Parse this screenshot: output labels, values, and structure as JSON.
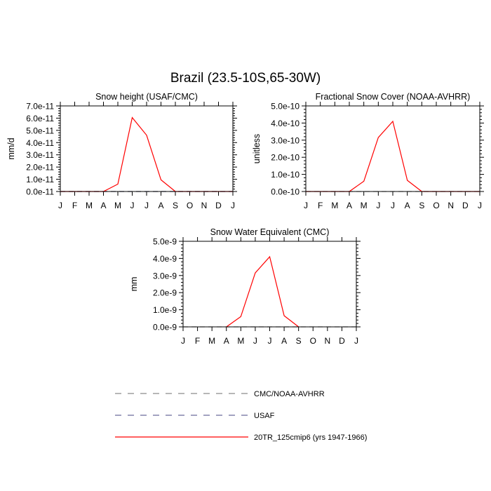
{
  "figure_title": "Brazil (23.5-10S,65-30W)",
  "colors": {
    "model": "#ff0000",
    "obs_cmc": "#8c8c8c",
    "obs_usaf": "#6b6b9a"
  },
  "legend": {
    "items": [
      {
        "label": "CMC/NOAA-AVHRR",
        "style": "dashed",
        "color": "#8c8c8c"
      },
      {
        "label": "USAF",
        "style": "dashed",
        "color": "#6b6b9a"
      },
      {
        "label": "20TR_125cmip6 (yrs 1947-1966)",
        "style": "solid",
        "color": "#ff0000"
      }
    ]
  },
  "chart_data": [
    {
      "type": "line",
      "title": "Snow height (USAF/CMC)",
      "ylabel": "mm/d",
      "xlabel": "",
      "x": [
        "J",
        "F",
        "M",
        "A",
        "M",
        "J",
        "J",
        "A",
        "S",
        "O",
        "N",
        "D",
        "J"
      ],
      "ylim": [
        0,
        7e-11
      ],
      "yticks": [
        0,
        1e-11,
        2e-11,
        3e-11,
        4e-11,
        5e-11,
        6e-11,
        7e-11
      ],
      "ytick_labels": [
        "0.0e-11",
        "1.0e-11",
        "2.0e-11",
        "3.0e-11",
        "4.0e-11",
        "5.0e-11",
        "6.0e-11",
        "7.0e-11"
      ],
      "series": [
        {
          "name": "20TR_125cmip6 (yrs 1947-1966)",
          "style": "solid",
          "values": [
            0,
            0,
            0,
            0,
            6e-12,
            6.05e-11,
            4.6e-11,
            9.5e-12,
            0,
            0,
            0,
            0,
            0
          ]
        },
        {
          "name": "USAF",
          "style": "dashed",
          "values": [
            0,
            0,
            0,
            0,
            0,
            0,
            0,
            0,
            0,
            0,
            0,
            0,
            0
          ]
        },
        {
          "name": "CMC/NOAA-AVHRR",
          "style": "dashed",
          "values": [
            0,
            0,
            0,
            0,
            0,
            0,
            0,
            0,
            0,
            0,
            0,
            0,
            0
          ]
        }
      ]
    },
    {
      "type": "line",
      "title": "Fractional Snow Cover (NOAA-AVHRR)",
      "ylabel": "unitless",
      "xlabel": "",
      "x": [
        "J",
        "F",
        "M",
        "A",
        "M",
        "J",
        "J",
        "A",
        "S",
        "O",
        "N",
        "D",
        "J"
      ],
      "ylim": [
        0,
        5e-10
      ],
      "yticks": [
        0,
        1e-10,
        2e-10,
        3e-10,
        4e-10,
        5e-10
      ],
      "ytick_labels": [
        "0.0e-10",
        "1.0e-10",
        "2.0e-10",
        "3.0e-10",
        "4.0e-10",
        "5.0e-10"
      ],
      "series": [
        {
          "name": "20TR_125cmip6 (yrs 1947-1966)",
          "style": "solid",
          "values": [
            0,
            0,
            0,
            0,
            6e-11,
            3.15e-10,
            4.1e-10,
            6.5e-11,
            0,
            0,
            0,
            0,
            0
          ]
        },
        {
          "name": "CMC/NOAA-AVHRR",
          "style": "dashed",
          "values": [
            0,
            0,
            0,
            0,
            0,
            0,
            0,
            0,
            0,
            0,
            0,
            0,
            0
          ]
        }
      ]
    },
    {
      "type": "line",
      "title": "Snow Water Equivalent (CMC)",
      "ylabel": "mm",
      "xlabel": "",
      "x": [
        "J",
        "F",
        "M",
        "A",
        "M",
        "J",
        "J",
        "A",
        "S",
        "O",
        "N",
        "D",
        "J"
      ],
      "ylim": [
        0,
        5e-09
      ],
      "yticks": [
        0,
        1e-09,
        2e-09,
        3e-09,
        4e-09,
        5e-09
      ],
      "ytick_labels": [
        "0.0e-9",
        "1.0e-9",
        "2.0e-9",
        "3.0e-9",
        "4.0e-9",
        "5.0e-9"
      ],
      "series": [
        {
          "name": "20TR_125cmip6 (yrs 1947-1966)",
          "style": "solid",
          "values": [
            null,
            null,
            null,
            0,
            6e-10,
            3.15e-09,
            4.1e-09,
            6.5e-10,
            0,
            null,
            null,
            null,
            null
          ]
        },
        {
          "name": "CMC/NOAA-AVHRR",
          "style": "dashed",
          "values": [
            0,
            0,
            0,
            0,
            0,
            0,
            0,
            0,
            0,
            0,
            0,
            0,
            0
          ]
        }
      ]
    }
  ]
}
